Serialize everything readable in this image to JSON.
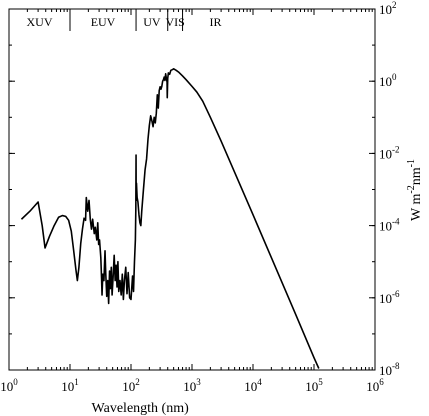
{
  "chart_data": {
    "type": "line",
    "title": "",
    "xlabel": "Wavelength (nm)",
    "ylabel": "W m-2nm-1",
    "x_scale": "log",
    "y_scale": "log",
    "xlim": [
      1,
      1000000
    ],
    "ylim": [
      1e-08,
      100
    ],
    "y_axis_side": "right",
    "grid": false,
    "x_ticks": [
      {
        "value": 1,
        "base": "10",
        "exp": "0"
      },
      {
        "value": 10,
        "base": "10",
        "exp": "1"
      },
      {
        "value": 100,
        "base": "10",
        "exp": "2"
      },
      {
        "value": 1000,
        "base": "10",
        "exp": "3"
      },
      {
        "value": 10000,
        "base": "10",
        "exp": "4"
      },
      {
        "value": 100000,
        "base": "10",
        "exp": "5"
      },
      {
        "value": 1000000,
        "base": "10",
        "exp": "6"
      }
    ],
    "y_ticks": [
      {
        "value": 100,
        "base": "10",
        "exp": "2"
      },
      {
        "value": 1,
        "base": "10",
        "exp": "0"
      },
      {
        "value": 0.01,
        "base": "10",
        "exp": "-2"
      },
      {
        "value": 0.0001,
        "base": "10",
        "exp": "-4"
      },
      {
        "value": 1e-06,
        "base": "10",
        "exp": "-6"
      },
      {
        "value": 1e-08,
        "base": "10",
        "exp": "-8"
      }
    ],
    "bands": [
      {
        "label": "XUV",
        "from": 1,
        "to": 10
      },
      {
        "label": "EUV",
        "from": 10,
        "to": 121
      },
      {
        "label": "UV",
        "from": 121,
        "to": 400
      },
      {
        "label": "VIS",
        "from": 400,
        "to": 700
      },
      {
        "label": "IR",
        "from": 700,
        "to": 1000000
      }
    ],
    "series": [
      {
        "color": "#000000",
        "points": [
          [
            1.6,
            0.00015
          ],
          [
            2.2,
            0.00025
          ],
          [
            3.0,
            0.00045
          ],
          [
            3.5,
            0.0001
          ],
          [
            3.9,
            2.4e-05
          ],
          [
            4.6,
            5e-05
          ],
          [
            5.5,
            0.0001
          ],
          [
            6.5,
            0.00017
          ],
          [
            7.5,
            0.00019
          ],
          [
            8.5,
            0.00018
          ],
          [
            9.5,
            0.00014
          ],
          [
            10.5,
            7e-05
          ],
          [
            11.5,
            2e-05
          ],
          [
            12.5,
            6e-06
          ],
          [
            13.2,
            3e-06
          ],
          [
            14.0,
            7e-06
          ],
          [
            15.0,
            3.2e-05
          ],
          [
            16.0,
            8e-05
          ],
          [
            17.0,
            0.00016
          ],
          [
            18.0,
            0.00014
          ],
          [
            18.5,
            0.0006
          ],
          [
            19.5,
            0.00025
          ],
          [
            20.5,
            0.0005
          ],
          [
            21.5,
            0.00015
          ],
          [
            22.5,
            8e-05
          ],
          [
            23.5,
            0.00015
          ],
          [
            25.0,
            6e-05
          ],
          [
            26.0,
            9e-05
          ],
          [
            27.5,
            4e-05
          ],
          [
            28.5,
            0.00012
          ],
          [
            29.5,
            3e-05
          ],
          [
            30.5,
            4e-05
          ],
          [
            32.0,
            1.3e-05
          ],
          [
            33.0,
            3e-06
          ],
          [
            33.5,
            1.2e-06
          ],
          [
            34.5,
            4.5e-06
          ],
          [
            36.0,
            3e-06
          ],
          [
            37.5,
            2e-05
          ],
          [
            38.5,
            5e-06
          ],
          [
            40.0,
            1.1e-06
          ],
          [
            41.5,
            3e-06
          ],
          [
            43.0,
            7e-07
          ],
          [
            44.5,
            5.5e-06
          ],
          [
            46.0,
            1.8e-06
          ],
          [
            47.5,
            7e-06
          ],
          [
            49.0,
            1.2e-06
          ],
          [
            51.0,
            4e-06
          ],
          [
            53.0,
            1.5e-05
          ],
          [
            55.0,
            3e-06
          ],
          [
            57.0,
            8e-06
          ],
          [
            59.0,
            2e-06
          ],
          [
            61.0,
            1e-05
          ],
          [
            63.0,
            1.5e-06
          ],
          [
            66.0,
            3e-06
          ],
          [
            69.0,
            1.2e-06
          ],
          [
            72.0,
            4.5e-06
          ],
          [
            75.0,
            9e-07
          ],
          [
            78.0,
            3e-06
          ],
          [
            82.0,
            7e-06
          ],
          [
            86.0,
            1.3e-06
          ],
          [
            90.0,
            5e-06
          ],
          [
            95.0,
            1e-06
          ],
          [
            100.0,
            9e-07
          ],
          [
            106.0,
            4e-06
          ],
          [
            110.0,
            1.5e-06
          ],
          [
            114.0,
            1e-05
          ],
          [
            118.0,
            4e-05
          ],
          [
            120.0,
            0.0003
          ],
          [
            121.0,
            0.009
          ],
          [
            121.6,
            0.0005
          ],
          [
            123.0,
            0.0015
          ],
          [
            126.0,
            0.0006
          ],
          [
            130.0,
            0.00045
          ],
          [
            135.0,
            0.0002
          ],
          [
            140.0,
            0.00012
          ],
          [
            145.0,
            0.0001
          ],
          [
            150.0,
            0.00025
          ],
          [
            160.0,
            0.001
          ],
          [
            170.0,
            0.0035
          ],
          [
            180.0,
            0.007
          ],
          [
            190.0,
            0.025
          ],
          [
            200.0,
            0.06
          ],
          [
            210.0,
            0.11
          ],
          [
            220.0,
            0.08
          ],
          [
            230.0,
            0.055
          ],
          [
            240.0,
            0.1
          ],
          [
            250.0,
            0.07
          ],
          [
            260.0,
            0.13
          ],
          [
            270.0,
            0.42
          ],
          [
            280.0,
            0.18
          ],
          [
            290.0,
            0.55
          ],
          [
            300.0,
            0.7
          ],
          [
            310.0,
            0.6
          ],
          [
            320.0,
            0.72
          ],
          [
            330.0,
            1.0
          ],
          [
            340.0,
            1.1
          ],
          [
            350.0,
            1.3
          ],
          [
            360.0,
            1.05
          ],
          [
            370.0,
            1.6
          ],
          [
            380.0,
            1.2
          ],
          [
            390.0,
            0.95
          ],
          [
            393.0,
            0.35
          ],
          [
            400.0,
            1.2
          ],
          [
            410.0,
            1.7
          ],
          [
            430.0,
            1.55
          ],
          [
            450.0,
            2.0
          ],
          [
            480.0,
            2.1
          ],
          [
            500.0,
            2.2
          ],
          [
            550.0,
            2.0
          ],
          [
            600.0,
            1.8
          ],
          [
            700.0,
            1.4
          ],
          [
            800.0,
            1.1
          ],
          [
            1000.0,
            0.72
          ],
          [
            1200.0,
            0.5
          ],
          [
            1500.0,
            0.28
          ],
          [
            2000.0,
            0.1
          ],
          [
            3000.0,
            0.022
          ],
          [
            5000.0,
            0.003
          ],
          [
            10000.0,
            0.0002
          ],
          [
            20000.0,
            1.3e-05
          ],
          [
            50000.0,
            3.5e-07
          ],
          [
            100000.0,
            2.2e-08
          ],
          [
            120000.0,
            1.1e-08
          ]
        ]
      }
    ]
  }
}
